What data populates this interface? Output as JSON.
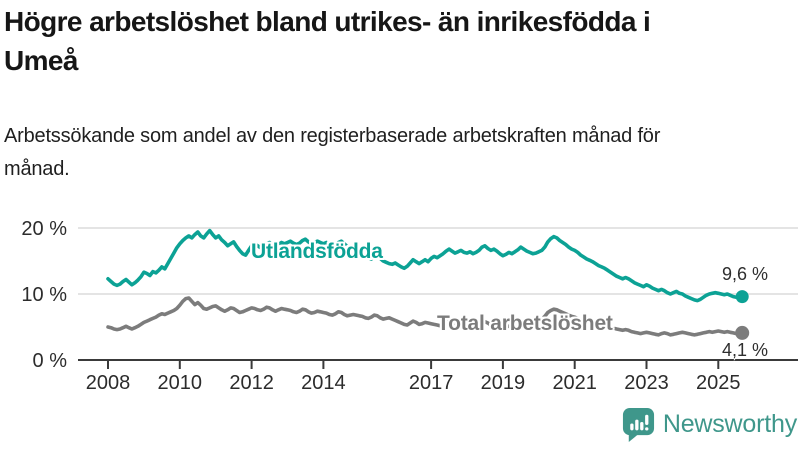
{
  "header": {
    "title": "Högre arbetslöshet bland utrikes- än inrikesfödda i Umeå",
    "subtitle": "Arbetssökande som andel av den registerbaserade arbetskraften månad för månad."
  },
  "chart_data": {
    "type": "line",
    "title": "Högre arbetslöshet bland utrikes- än inrikesfödda i Umeå",
    "x_unit": "month",
    "x_start": "2008-01",
    "x_end": "2025-09",
    "x_ticks": [
      2008,
      2010,
      2012,
      2014,
      2017,
      2019,
      2021,
      2023,
      2025
    ],
    "y_ticks": [
      {
        "value": 0,
        "label": "0 %"
      },
      {
        "value": 10,
        "label": "10 %"
      },
      {
        "value": 20,
        "label": "20 %"
      }
    ],
    "ylim": [
      0,
      22
    ],
    "grid": "horizontal",
    "legend": "inline-labels",
    "series": [
      {
        "name": "Utlandsfödda",
        "color": "#0ca295",
        "end_value": 9.6,
        "end_label": "9,6 %",
        "values": [
          12.3,
          11.9,
          11.5,
          11.3,
          11.5,
          11.9,
          12.2,
          11.8,
          11.4,
          11.7,
          12.1,
          12.6,
          13.3,
          13.1,
          12.8,
          13.4,
          13.2,
          13.6,
          14.1,
          13.8,
          14.6,
          15.4,
          16.2,
          17.0,
          17.6,
          18.1,
          18.5,
          18.8,
          18.5,
          19.0,
          19.4,
          18.8,
          18.5,
          19.1,
          19.6,
          19.0,
          18.5,
          18.8,
          18.2,
          17.8,
          17.3,
          17.6,
          17.9,
          17.2,
          16.6,
          16.1,
          15.9,
          16.6,
          17.3,
          17.6,
          17.3,
          17.0,
          17.2,
          17.6,
          17.8,
          17.4,
          17.2,
          17.5,
          17.8,
          17.6,
          17.8,
          18.0,
          17.7,
          17.5,
          17.7,
          18.1,
          18.3,
          17.9,
          17.6,
          17.8,
          18.0,
          17.8,
          17.6,
          17.8,
          17.5,
          17.2,
          17.4,
          17.8,
          18.0,
          17.6,
          17.2,
          17.0,
          16.8,
          16.5,
          16.3,
          16.1,
          15.8,
          15.5,
          15.3,
          15.6,
          15.8,
          15.4,
          15.0,
          14.8,
          14.6,
          14.5,
          14.7,
          14.4,
          14.1,
          13.9,
          14.2,
          14.7,
          15.2,
          14.9,
          14.6,
          14.9,
          15.2,
          14.9,
          15.4,
          15.7,
          15.5,
          15.8,
          16.1,
          16.5,
          16.8,
          16.5,
          16.2,
          16.4,
          16.6,
          16.3,
          16.2,
          16.4,
          16.1,
          16.3,
          16.6,
          17.1,
          17.3,
          16.9,
          16.6,
          16.8,
          16.5,
          16.1,
          15.8,
          16.0,
          16.3,
          16.1,
          16.4,
          16.7,
          17.1,
          16.8,
          16.5,
          16.3,
          16.1,
          16.2,
          16.4,
          16.6,
          17.1,
          17.9,
          18.4,
          18.7,
          18.5,
          18.1,
          17.8,
          17.5,
          17.1,
          16.8,
          16.6,
          16.3,
          15.9,
          15.6,
          15.3,
          15.1,
          14.9,
          14.6,
          14.3,
          14.1,
          13.9,
          13.6,
          13.3,
          13.0,
          12.7,
          12.5,
          12.3,
          12.5,
          12.3,
          12.0,
          11.7,
          11.5,
          11.3,
          11.1,
          11.4,
          11.2,
          10.9,
          10.7,
          10.5,
          10.7,
          10.5,
          10.2,
          10.0,
          10.2,
          10.4,
          10.1,
          10.0,
          9.7,
          9.5,
          9.3,
          9.1,
          9.0,
          9.2,
          9.5,
          9.8,
          10.0,
          10.1,
          10.2,
          10.1,
          10.0,
          9.9,
          10.0,
          9.8,
          9.6,
          9.5,
          9.7,
          9.6
        ]
      },
      {
        "name": "Total arbetslöshet",
        "color": "#7c7c7c",
        "end_value": 4.1,
        "end_label": "4,1 %",
        "values": [
          5.0,
          4.9,
          4.7,
          4.6,
          4.7,
          4.9,
          5.1,
          4.9,
          4.7,
          4.9,
          5.1,
          5.4,
          5.7,
          5.9,
          6.1,
          6.3,
          6.5,
          6.8,
          7.0,
          6.9,
          7.1,
          7.3,
          7.5,
          7.8,
          8.3,
          8.9,
          9.3,
          9.4,
          8.9,
          8.4,
          8.7,
          8.3,
          7.8,
          7.7,
          7.9,
          8.1,
          8.2,
          7.9,
          7.6,
          7.4,
          7.6,
          7.9,
          7.8,
          7.5,
          7.2,
          7.3,
          7.5,
          7.7,
          7.9,
          7.8,
          7.6,
          7.5,
          7.7,
          8.0,
          7.9,
          7.6,
          7.4,
          7.6,
          7.8,
          7.7,
          7.6,
          7.5,
          7.3,
          7.2,
          7.4,
          7.7,
          7.6,
          7.3,
          7.1,
          7.2,
          7.4,
          7.3,
          7.2,
          7.1,
          6.9,
          6.8,
          7.0,
          7.3,
          7.2,
          6.9,
          6.7,
          6.8,
          6.9,
          6.8,
          6.7,
          6.6,
          6.4,
          6.3,
          6.5,
          6.8,
          6.7,
          6.4,
          6.2,
          6.3,
          6.4,
          6.2,
          6.0,
          5.8,
          5.6,
          5.4,
          5.3,
          5.6,
          5.9,
          5.7,
          5.4,
          5.5,
          5.7,
          5.6,
          5.5,
          5.4,
          5.3,
          5.2,
          5.4,
          5.7,
          5.9,
          5.7,
          5.4,
          5.5,
          5.6,
          5.5,
          5.4,
          5.3,
          5.2,
          5.1,
          5.3,
          5.6,
          5.8,
          5.6,
          5.3,
          5.4,
          5.5,
          5.4,
          5.3,
          5.2,
          5.1,
          5.2,
          5.4,
          5.7,
          5.9,
          5.7,
          5.5,
          5.6,
          5.7,
          5.8,
          6.0,
          6.2,
          6.6,
          7.2,
          7.5,
          7.7,
          7.6,
          7.4,
          7.2,
          7.0,
          6.8,
          6.6,
          6.5,
          6.3,
          6.1,
          5.9,
          5.7,
          5.8,
          5.7,
          5.5,
          5.3,
          5.2,
          5.1,
          5.0,
          4.9,
          4.8,
          4.7,
          4.6,
          4.5,
          4.6,
          4.5,
          4.3,
          4.2,
          4.1,
          4.0,
          4.1,
          4.2,
          4.1,
          4.0,
          3.9,
          3.8,
          4.0,
          4.1,
          4.0,
          3.8,
          3.9,
          4.0,
          4.1,
          4.2,
          4.1,
          4.0,
          3.9,
          3.8,
          3.9,
          4.0,
          4.1,
          4.2,
          4.3,
          4.2,
          4.3,
          4.4,
          4.3,
          4.2,
          4.3,
          4.2,
          4.1,
          4.0,
          4.2,
          4.1
        ]
      }
    ]
  },
  "style_colors": {
    "accent_teal": "#0ca295",
    "series_gray": "#7c7c7c",
    "axis": "#3a3a3a",
    "gridline": "#dcdcdc",
    "logo_teal": "#3f978b"
  },
  "branding": {
    "wordmark": "Newsworthy"
  }
}
